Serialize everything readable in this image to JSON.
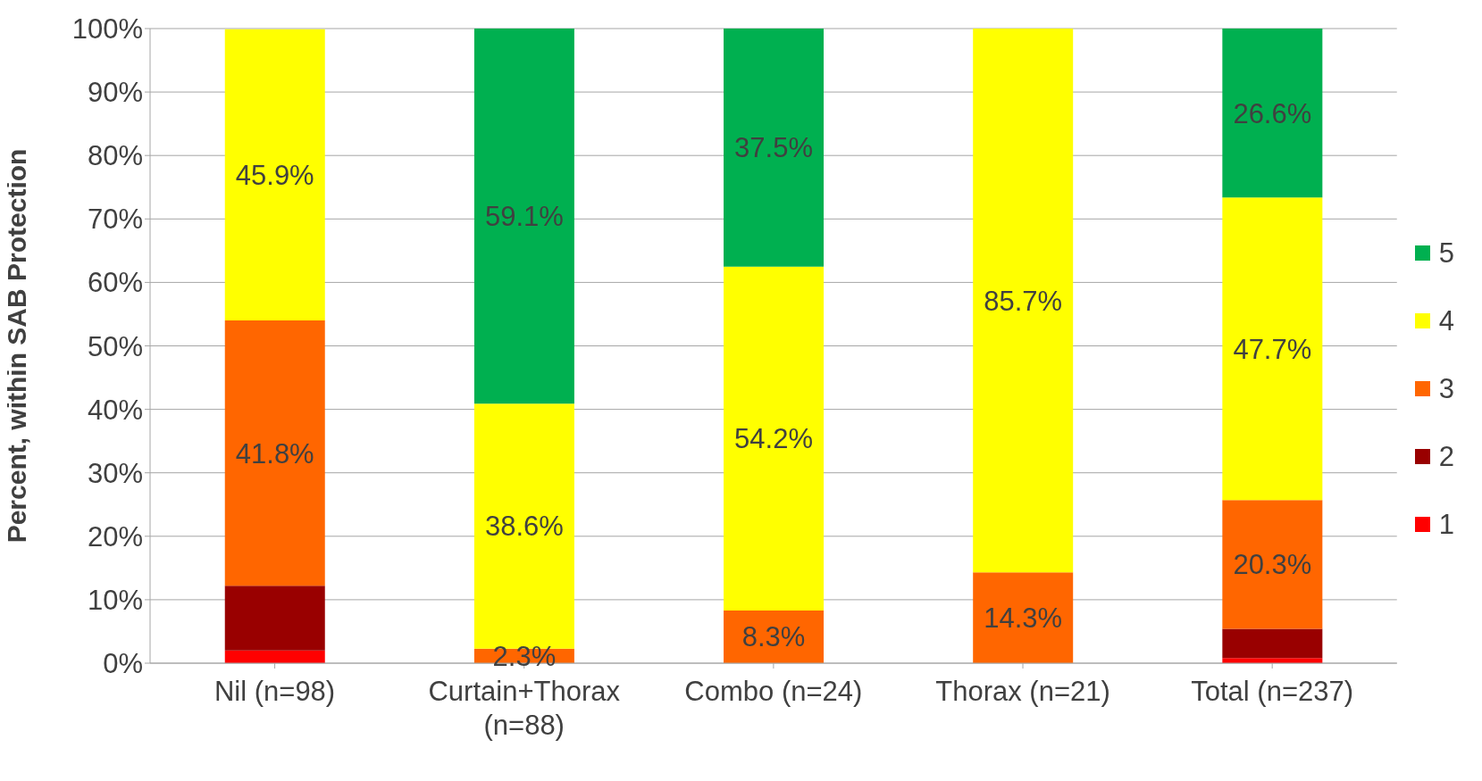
{
  "chart_data": {
    "type": "bar",
    "stacked": true,
    "ylabel": "Percent, within SAB Protection",
    "categories": [
      "Nil (n=98)",
      "Curtain+Thorax (n=88)",
      "Combo (n=24)",
      "Thorax (n=21)",
      "Total (n=237)"
    ],
    "series": [
      {
        "name": "1",
        "color": "#ff0000",
        "values": [
          2.0,
          0,
          0,
          0,
          0.8
        ],
        "value_labels": [
          null,
          null,
          null,
          null,
          null
        ]
      },
      {
        "name": "2",
        "color": "#990000",
        "values": [
          10.2,
          0,
          0,
          0,
          4.6
        ],
        "value_labels": [
          null,
          null,
          null,
          null,
          null
        ]
      },
      {
        "name": "3",
        "color": "#ff6600",
        "values": [
          41.8,
          2.3,
          8.3,
          14.3,
          20.3
        ],
        "value_labels": [
          "41.8%",
          "2.3%",
          "8.3%",
          "14.3%",
          "20.3%"
        ]
      },
      {
        "name": "4",
        "color": "#ffff00",
        "values": [
          45.9,
          38.6,
          54.2,
          85.7,
          47.7
        ],
        "value_labels": [
          "45.9%",
          "38.6%",
          "54.2%",
          "85.7%",
          "47.7%"
        ]
      },
      {
        "name": "5",
        "color": "#00b050",
        "values": [
          0,
          59.1,
          37.5,
          0,
          26.6
        ],
        "value_labels": [
          null,
          "59.1%",
          "37.5%",
          null,
          "26.6%"
        ]
      }
    ],
    "ylim": [
      0,
      100
    ],
    "yticks": [
      {
        "value": 0,
        "label": "0%"
      },
      {
        "value": 10,
        "label": "10%"
      },
      {
        "value": 20,
        "label": "20%"
      },
      {
        "value": 30,
        "label": "30%"
      },
      {
        "value": 40,
        "label": "40%"
      },
      {
        "value": 50,
        "label": "50%"
      },
      {
        "value": 60,
        "label": "60%"
      },
      {
        "value": 70,
        "label": "70%"
      },
      {
        "value": 80,
        "label": "80%"
      },
      {
        "value": 90,
        "label": "90%"
      },
      {
        "value": 100,
        "label": "100%"
      }
    ],
    "grid": "y",
    "legend": "right"
  }
}
